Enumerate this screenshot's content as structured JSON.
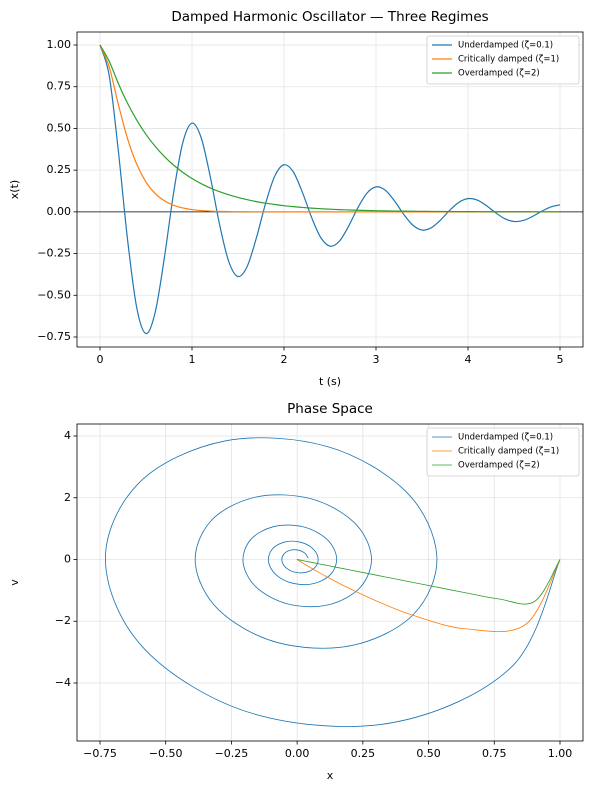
{
  "chart_data": [
    {
      "type": "line",
      "title": "Damped Harmonic Oscillator — Three Regimes",
      "xlabel": "t (s)",
      "ylabel": "x(t)",
      "x": [
        0,
        0.1,
        0.2,
        0.3,
        0.4,
        0.5,
        0.6,
        0.7,
        0.8,
        0.9,
        1,
        1.1,
        1.2,
        1.3,
        1.4,
        1.5,
        1.6,
        1.7,
        1.8,
        1.9,
        2,
        2.1,
        2.2,
        2.3,
        2.4,
        2.5,
        2.6,
        2.7,
        2.8,
        2.9,
        3,
        3.1,
        3.2,
        3.3,
        3.4,
        3.5,
        3.6,
        3.7,
        3.8,
        3.9,
        4,
        4.1,
        4.2,
        4.3,
        4.4,
        4.5,
        4.6,
        4.7,
        4.8,
        4.9,
        5
      ],
      "series": [
        {
          "name": "Underdamped (ζ=0.1)",
          "color": "#1f77b4",
          "values": [
            1,
            0.8167,
            0.3619,
            -0.169,
            -0.5767,
            -0.7292,
            -0.6018,
            -0.2737,
            0.1141,
            0.4153,
            0.5315,
            0.4434,
            0.2065,
            -0.0765,
            -0.2987,
            -0.3874,
            -0.3266,
            -0.1558,
            0.0509,
            0.2148,
            0.2822,
            0.2405,
            0.1173,
            -0.0335,
            -0.1545,
            -0.2056,
            -0.177,
            -0.0882,
            0.0218,
            0.1109,
            0.1497,
            0.1302,
            0.0663,
            -0.0139,
            -0.0796,
            -0.109,
            -0.0957,
            -0.0497,
            0.0087,
            0.0571,
            0.0793,
            0.0705,
            0.0373,
            -0.0053,
            -0.041,
            -0.0578,
            -0.0517,
            -0.028,
            0.0031,
            0.0294,
            0.042
          ]
        },
        {
          "name": "Critically damped (ζ=1)",
          "color": "#ff7f0e",
          "values": [
            1,
            0.8687,
            0.6422,
            0.4379,
            0.2846,
            0.1789,
            0.1099,
            0.0664,
            0.0395,
            0.0233,
            0.0136,
            0.0079,
            0.0045,
            0.0026,
            0.0015,
            0.0008,
            0.0005,
            0.0003,
            0.0002,
            0.0001,
            0.0001,
            0,
            0,
            0,
            0,
            0,
            0,
            0,
            0,
            0,
            0,
            0,
            0,
            0,
            0,
            0,
            0,
            0,
            0,
            0,
            0,
            0,
            0,
            0,
            0,
            0,
            0,
            0,
            0,
            0,
            0
          ]
        },
        {
          "name": "Overdamped (ζ=2)",
          "color": "#2ca02c",
          "values": [
            1,
            0.903,
            0.7686,
            0.65,
            0.5493,
            0.4641,
            0.3923,
            0.3314,
            0.2801,
            0.2367,
            0.2,
            0.169,
            0.1428,
            0.1207,
            0.1019,
            0.0862,
            0.0728,
            0.0615,
            0.0519,
            0.044,
            0.0371,
            0.0314,
            0.0265,
            0.0224,
            0.019,
            0.0159,
            0.0135,
            0.0114,
            0.0097,
            0.0082,
            0.0069,
            0.0058,
            0.0049,
            0.0042,
            0.0035,
            0.003,
            0.0025,
            0.0021,
            0.0018,
            0.0015,
            0.0013,
            0.0011,
            0.0009,
            0.0008,
            0.0007,
            0.0005,
            0.0005,
            0.0004,
            0.0003,
            0.0003,
            0.0002
          ]
        }
      ],
      "reference_line": 0,
      "xlim": [
        -0.25,
        5.25
      ],
      "xticks": [
        0,
        1,
        2,
        3,
        4,
        5
      ],
      "ylim": [
        -0.81,
        1.078
      ],
      "yticks": [
        {
          "value": -0.75,
          "label": "−0.75"
        },
        {
          "value": -0.5,
          "label": "−0.50"
        },
        {
          "value": -0.25,
          "label": "−0.25"
        },
        {
          "value": 0,
          "label": "0.00"
        },
        {
          "value": 0.25,
          "label": "0.25"
        },
        {
          "value": 0.5,
          "label": "0.50"
        },
        {
          "value": 0.75,
          "label": "0.75"
        },
        {
          "value": 1,
          "label": "1.00"
        }
      ],
      "grid": true,
      "legend": "upper right"
    },
    {
      "type": "phase",
      "title": "Phase Space",
      "xlabel": "x",
      "ylabel": "v",
      "series": [
        {
          "name": "Underdamped (ζ=0.1)",
          "color": "#1f77b4",
          "x": [
            1,
            0.8167,
            0.3619,
            -0.169,
            -0.5767,
            -0.7292,
            -0.6018,
            -0.2737,
            0.1141,
            0.4153,
            0.5315,
            0.4434,
            0.2065,
            -0.0765,
            -0.2987,
            -0.3874,
            -0.3266,
            -0.1558,
            0.0509,
            0.2148,
            0.2822,
            0.2405,
            0.1173,
            -0.0335,
            -0.1545,
            -0.2056,
            -0.177,
            -0.0882,
            0.0218,
            0.1109,
            0.1497,
            0.1302,
            0.0663,
            -0.0139,
            -0.0796,
            -0.109,
            -0.0957,
            -0.0497,
            0.0087,
            0.0571,
            0.0793,
            0.0705,
            0.0373,
            -0.0053,
            -0.041,
            -0.0578,
            -0.0517,
            -0.028,
            0.0031,
            0.0294,
            0.042
          ],
          "values": [
            0,
            -3.471,
            -5.286,
            -4.989,
            -2.937,
            -0.0724,
            2.48,
            3.84,
            3.661,
            2.189,
            0.1058,
            -1.77,
            -2.789,
            -2.686,
            -1.631,
            -0.1159,
            1.263,
            2.025,
            1.971,
            1.215,
            0.1129,
            -0.8999,
            -1.47,
            -1.445,
            -0.9043,
            -0.1031,
            0.6409,
            1.067,
            1.06,
            0.6729,
            0.0902,
            -0.4559,
            -0.7739,
            -0.7763,
            -0.5001,
            -0.0768,
            0.324,
            0.5613,
            0.5688,
            0.3713,
            0.0641,
            -0.2302,
            -0.4067,
            -0.417,
            -0.276,
            -0.0527,
            0.163,
            0.2951,
            0.3053,
            0.2047,
            0.0427
          ]
        },
        {
          "name": "Critically damped (ζ=1)",
          "color": "#ff7f0e",
          "x": [
            1,
            0.8687,
            0.6422,
            0.4379,
            0.2846,
            0.1789,
            0.1099,
            0.0664,
            0.0395,
            0.0233,
            0.0136,
            0.0079,
            0.0045,
            0.0026,
            0.0015,
            0.0008,
            0.0005,
            0.0003,
            0.0002,
            0.0001,
            0.0001,
            0,
            0,
            0,
            0,
            0,
            0,
            0,
            0,
            0,
            0,
            0,
            0,
            0,
            0,
            0,
            0,
            0,
            0,
            0,
            0,
            0,
            0,
            0,
            0,
            0,
            0,
            0,
            0,
            0,
            0
          ],
          "values": [
            0,
            -2.106,
            -2.247,
            -1.798,
            -1.279,
            -0.8527,
            -0.546,
            -0.3399,
            -0.2072,
            -0.1244,
            -0.0737,
            -0.0433,
            -0.0252,
            -0.0146,
            -0.0084,
            -0.0048,
            -0.0027,
            -0.0015,
            -0.0009,
            -0.0005,
            -0.0003,
            0,
            0,
            0,
            0,
            0,
            0,
            0,
            0,
            0,
            0,
            0,
            0,
            0,
            0,
            0,
            0,
            0,
            0,
            0,
            0,
            0,
            0,
            0,
            0,
            0,
            0,
            0,
            0,
            0,
            0
          ]
        },
        {
          "name": "Overdamped (ζ=2)",
          "color": "#2ca02c",
          "x": [
            1,
            0.903,
            0.7686,
            0.65,
            0.5493,
            0.4641,
            0.3923,
            0.3314,
            0.2801,
            0.2367,
            0.2,
            0.169,
            0.1428,
            0.1207,
            0.1019,
            0.0862,
            0.0728,
            0.0615,
            0.0519,
            0.044,
            0.0371,
            0.0314,
            0.0265,
            0.0224,
            0.019,
            0.0159,
            0.0135,
            0.0114,
            0.0097,
            0.0082,
            0.0069,
            0.0058,
            0.0049,
            0.0042,
            0.0035,
            0.003,
            0.0025,
            0.0021,
            0.0018,
            0.0015,
            0.0013,
            0.0011,
            0.0009,
            0.0008,
            0.0007,
            0.0005,
            0.0005,
            0.0004,
            0.0003,
            0.0003,
            0.0002
          ],
          "values": [
            0,
            -1.359,
            -1.279,
            -1.093,
            -0.9246,
            -0.7815,
            -0.6605,
            -0.558,
            -0.4717,
            -0.3986,
            -0.3367,
            -0.2846,
            -0.2404,
            -0.2032,
            -0.1716,
            -0.1451,
            -0.1226,
            -0.1036,
            -0.0874,
            -0.074,
            -0.0624,
            -0.0528,
            -0.0446,
            -0.0377,
            -0.0319,
            -0.0268,
            -0.0227,
            -0.0192,
            -0.0163,
            -0.0137,
            -0.0116,
            -0.0098,
            -0.0083,
            -0.007,
            -0.0059,
            -0.005,
            -0.0042,
            -0.0036,
            -0.003,
            -0.0025,
            -0.0022,
            -0.0018,
            -0.0015,
            -0.0013,
            -0.0011,
            -0.0009,
            -0.0008,
            -0.0007,
            -0.0006,
            -0.0005,
            -0.0004
          ]
        }
      ],
      "xlim": [
        -0.8375,
        1.0875
      ],
      "xticks": [
        {
          "value": -0.75,
          "label": "−0.75"
        },
        {
          "value": -0.5,
          "label": "−0.50"
        },
        {
          "value": -0.25,
          "label": "−0.25"
        },
        {
          "value": 0,
          "label": "0.00"
        },
        {
          "value": 0.25,
          "label": "0.25"
        },
        {
          "value": 0.5,
          "label": "0.50"
        },
        {
          "value": 0.75,
          "label": "0.75"
        },
        {
          "value": 1,
          "label": "1.00"
        }
      ],
      "ylim": [
        -5.879,
        4.389
      ],
      "yticks": [
        {
          "value": -4,
          "label": "−4"
        },
        {
          "value": -2,
          "label": "−2"
        },
        0,
        2,
        4
      ],
      "grid": true,
      "legend": "upper right"
    }
  ]
}
